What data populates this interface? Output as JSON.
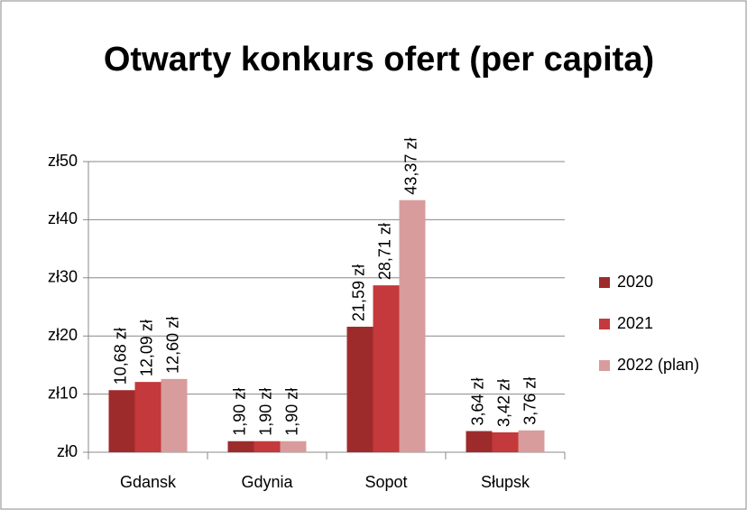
{
  "chart_data": {
    "type": "bar",
    "title": "Otwarty konkurs ofert (per capita)",
    "categories": [
      "Gdansk",
      "Gdynia",
      "Sopot",
      "Słupsk"
    ],
    "series": [
      {
        "name": "2020",
        "color": "#9e2b2c",
        "values": [
          10.68,
          1.9,
          21.59,
          3.64
        ],
        "value_labels": [
          "10,68 zł",
          "1,90 zł",
          "21,59 zł",
          "3,64 zł"
        ]
      },
      {
        "name": "2021",
        "color": "#c4393b",
        "values": [
          12.09,
          1.9,
          28.71,
          3.42
        ],
        "value_labels": [
          "12,09 zł",
          "1,90 zł",
          "28,71 zł",
          "3,42 zł"
        ]
      },
      {
        "name": "2022 (plan)",
        "color": "#d89c9d",
        "values": [
          12.6,
          1.9,
          43.37,
          3.76
        ],
        "value_labels": [
          "12,60 zł",
          "1,90 zł",
          "43,37 zł",
          "3,76 zł"
        ]
      }
    ],
    "ylim": [
      0,
      50
    ],
    "yticks": [
      {
        "value": 0,
        "label": "zł0"
      },
      {
        "value": 10,
        "label": "zł10"
      },
      {
        "value": 20,
        "label": "zł20"
      },
      {
        "value": 30,
        "label": "zł30"
      },
      {
        "value": 40,
        "label": "zł40"
      },
      {
        "value": 50,
        "label": "zł50"
      }
    ],
    "grid": true,
    "legend": "right"
  }
}
